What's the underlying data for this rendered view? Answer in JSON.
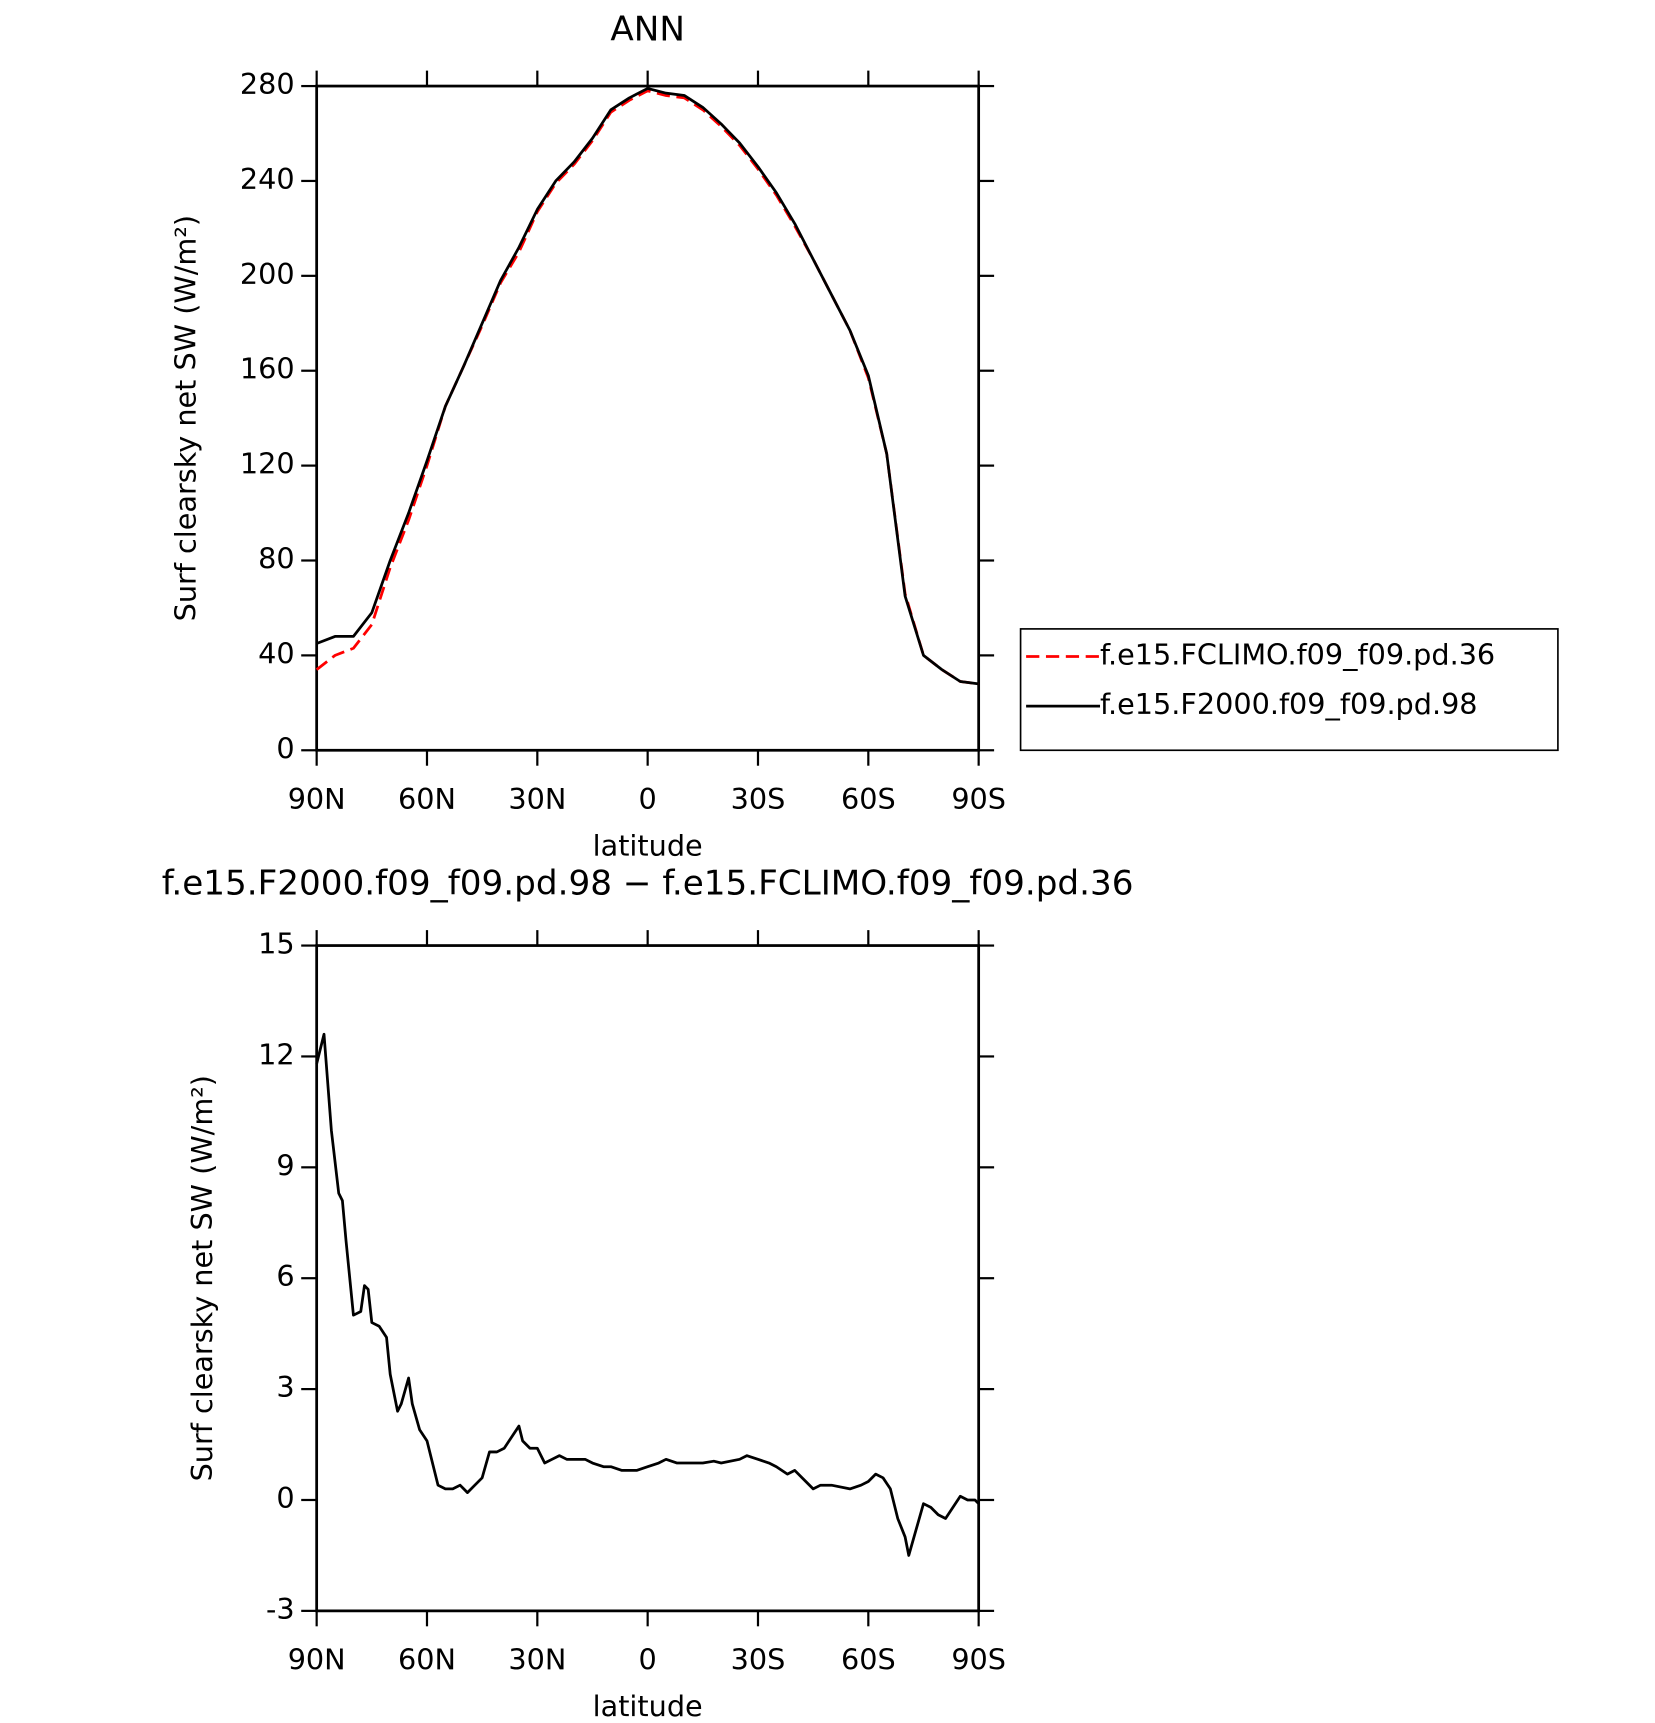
{
  "chart_data": [
    {
      "type": "line",
      "title": "ANN",
      "xlabel": "latitude",
      "ylabel": "Surf clearsky net SW (W/m²)",
      "x": [
        90,
        85,
        80,
        75,
        70,
        65,
        60,
        55,
        50,
        45,
        40,
        35,
        30,
        25,
        20,
        15,
        10,
        5,
        0,
        -5,
        -10,
        -15,
        -20,
        -25,
        -30,
        -35,
        -40,
        -45,
        -50,
        -55,
        -60,
        -65,
        -70,
        -75,
        -80,
        -85,
        -90
      ],
      "series": [
        {
          "name": "f.e15.FCLIMO.f09_f09.pd.36",
          "color": "#ff0000",
          "linestyle": "dashed",
          "values": [
            34,
            40,
            43,
            53,
            77,
            97,
            120,
            145,
            162,
            179,
            197,
            210,
            227,
            239,
            247,
            257,
            269,
            274,
            278,
            276,
            275,
            270,
            263,
            255,
            245,
            234,
            221,
            207,
            192,
            177,
            157,
            125,
            66,
            40,
            34,
            29,
            28
          ]
        },
        {
          "name": "f.e15.F2000.f09_f09.pd.98",
          "color": "#000000",
          "linestyle": "solid",
          "values": [
            45,
            48,
            48,
            58,
            80,
            100,
            122,
            145,
            162,
            180,
            198,
            212,
            228,
            240,
            248,
            258,
            270,
            275,
            279,
            277,
            276,
            271,
            264,
            256,
            246,
            235,
            222,
            207,
            192,
            177,
            158,
            125,
            65,
            40,
            34,
            29,
            28
          ]
        }
      ],
      "xlim": [
        90,
        -90
      ],
      "xticks": [
        {
          "value": 90,
          "label": "90N"
        },
        {
          "value": 60,
          "label": "60N"
        },
        {
          "value": 30,
          "label": "30N"
        },
        0,
        {
          "value": -30,
          "label": "30S"
        },
        {
          "value": -60,
          "label": "60S"
        },
        {
          "value": -90,
          "label": "90S"
        }
      ],
      "ylim": [
        0,
        280
      ],
      "yticks": [
        0,
        40,
        80,
        120,
        160,
        200,
        240,
        280
      ],
      "legend": "right"
    },
    {
      "type": "line",
      "title": "f.e15.F2000.f09_f09.pd.98 − f.e15.FCLIMO.f09_f09.pd.36",
      "xlabel": "latitude",
      "ylabel": "Surf clearsky net SW (W/m²)",
      "x": [
        90,
        88,
        86,
        84,
        83,
        82,
        80,
        78,
        77,
        76,
        75,
        73,
        71,
        70,
        68,
        67,
        65,
        64,
        62,
        60,
        58,
        57,
        55,
        53,
        51,
        50,
        49,
        47,
        45,
        43,
        41,
        39,
        37,
        35,
        34,
        32,
        30,
        28,
        26,
        24,
        22,
        20,
        17,
        15,
        12,
        10,
        7,
        5,
        3,
        0,
        -3,
        -5,
        -8,
        -10,
        -13,
        -15,
        -18,
        -20,
        -25,
        -27,
        -30,
        -33,
        -35,
        -38,
        -40,
        -43,
        -45,
        -47,
        -50,
        -55,
        -58,
        -60,
        -62,
        -64,
        -66,
        -68,
        -70,
        -71,
        -73,
        -75,
        -77,
        -79,
        -81,
        -83,
        -85,
        -87,
        -89,
        -90
      ],
      "values": [
        11.8,
        12.6,
        10,
        8.3,
        8.1,
        7,
        5,
        5.1,
        5.8,
        5.7,
        4.8,
        4.7,
        4.4,
        3.4,
        2.4,
        2.6,
        3.3,
        2.6,
        1.9,
        1.6,
        0.8,
        0.4,
        0.3,
        0.3,
        0.4,
        0.3,
        0.2,
        0.4,
        0.6,
        1.3,
        1.3,
        1.4,
        1.7,
        2.0,
        1.6,
        1.4,
        1.4,
        1.0,
        1.1,
        1.2,
        1.1,
        1.1,
        1.1,
        1.0,
        0.9,
        0.9,
        0.8,
        0.8,
        0.8,
        0.9,
        1.0,
        1.1,
        1.0,
        1.0,
        1.0,
        1.0,
        1.05,
        1.0,
        1.1,
        1.2,
        1.1,
        1.0,
        0.9,
        0.7,
        0.8,
        0.5,
        0.3,
        0.4,
        0.4,
        0.3,
        0.4,
        0.5,
        0.7,
        0.6,
        0.3,
        -0.5,
        -1.0,
        -1.5,
        -0.8,
        -0.1,
        -0.2,
        -0.4,
        -0.5,
        -0.2,
        0.1,
        0.0,
        0.0,
        -0.1
      ],
      "color": "#000000",
      "xlim": [
        90,
        -90
      ],
      "xticks": [
        {
          "value": 90,
          "label": "90N"
        },
        {
          "value": 60,
          "label": "60N"
        },
        {
          "value": 30,
          "label": "30N"
        },
        0,
        {
          "value": -30,
          "label": "30S"
        },
        {
          "value": -60,
          "label": "60S"
        },
        {
          "value": -90,
          "label": "90S"
        }
      ],
      "ylim": [
        -3,
        15
      ],
      "yticks": [
        -3,
        0,
        3,
        6,
        9,
        12,
        15
      ]
    }
  ]
}
